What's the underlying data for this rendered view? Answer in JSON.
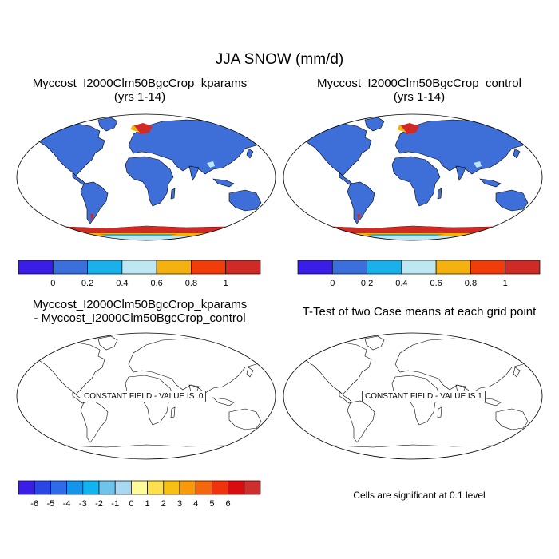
{
  "figure_title": "JJA SNOW (mm/d)",
  "panels": {
    "top_left": {
      "title_line1": "Myccost_I2000Clm50BgcCrop_kparams",
      "title_line2": "(yrs 1-14)"
    },
    "top_right": {
      "title_line1": "Myccost_I2000Clm50BgcCrop_control",
      "title_line2": "(yrs 1-14)"
    },
    "bottom_left": {
      "title_line1": "Myccost_I2000Clm50BgcCrop_kparams",
      "title_line2": "- Myccost_I2000Clm50BgcCrop_control",
      "label": "CONSTANT FIELD - VALUE IS .0"
    },
    "bottom_right": {
      "title_line1": "T-Test of two Case means at each grid point",
      "label": "CONSTANT FIELD - VALUE IS 1"
    }
  },
  "colorbar_top": {
    "colors": [
      "#3a1ee8",
      "#3b6fdc",
      "#19b1ec",
      "#bfe7f2",
      "#f5b20f",
      "#f23c0a",
      "#cf2a26"
    ],
    "labels": [
      "0",
      "0.2",
      "0.4",
      "0.6",
      "0.8",
      "1"
    ]
  },
  "colorbar_bottom": {
    "colors": [
      "#3a1ee8",
      "#2a46e6",
      "#2f6be7",
      "#1495ea",
      "#11b4ef",
      "#6ec4ec",
      "#a9d8f2",
      "#fffb9c",
      "#fde14a",
      "#f9bf12",
      "#f89a0a",
      "#f5670b",
      "#f0330b",
      "#d90c10",
      "#cf2e2e"
    ],
    "labels": [
      "-6",
      "-5",
      "-4",
      "-3",
      "-2",
      "-1",
      "0",
      "1",
      "2",
      "3",
      "4",
      "5",
      "6"
    ]
  },
  "significance_note": "Cells are significant at 0.1 level",
  "map_colors": {
    "land": "#3e6fd8",
    "snow_high": "#cf2a26",
    "snow_mid": "#f5b20f"
  }
}
